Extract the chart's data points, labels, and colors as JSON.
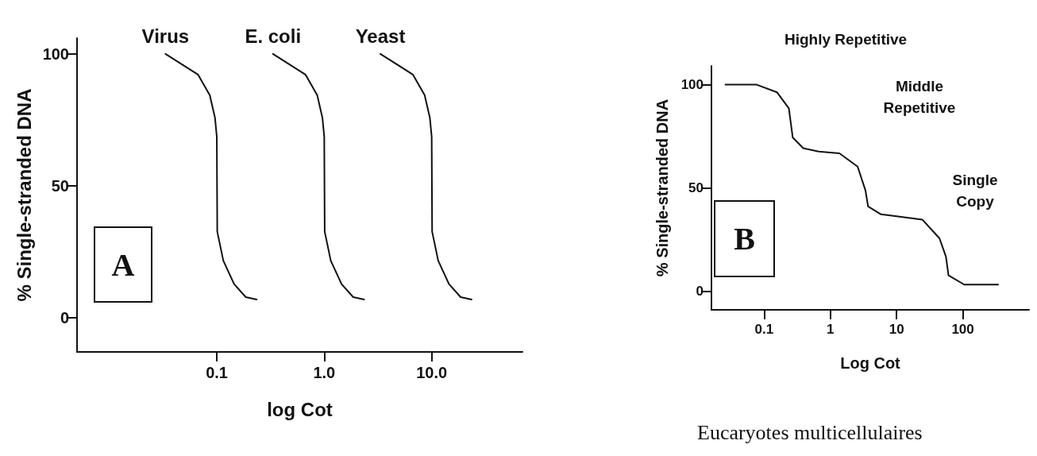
{
  "chart_data": [
    {
      "type": "line",
      "ylabel": "% Single-stranded DNA",
      "xlabel": "log Cot",
      "log": "x",
      "xlim": [
        0.005,
        70
      ],
      "xticks": [
        {
          "value": 0.1,
          "label": "0.1"
        },
        {
          "value": 1,
          "label": "1.0"
        },
        {
          "value": 10,
          "label": "10.0"
        }
      ],
      "ylim": [
        -13,
        106
      ],
      "yticks": [
        0,
        50,
        100
      ],
      "grid": false,
      "legend": false,
      "marker": "none",
      "line_style": "solid",
      "annotations": [
        "A"
      ],
      "series": [
        {
          "name": "Virus",
          "color": "#111111",
          "x": [
            0.0333,
            0.0668,
            0.086,
            0.0962,
            0.1,
            0.101,
            0.115,
            0.145,
            0.186,
            0.235
          ],
          "values": [
            100,
            92.2,
            84.4,
            75.8,
            68.6,
            32.6,
            21.6,
            12.7,
            7.8,
            6.9
          ]
        },
        {
          "name": "E. coli",
          "color": "#111111",
          "x": [
            0.333,
            0.668,
            0.86,
            0.962,
            1,
            1.01,
            1.15,
            1.45,
            1.86,
            2.35
          ],
          "values": [
            100,
            92.2,
            84.4,
            75.8,
            68.6,
            32.6,
            21.6,
            12.7,
            7.8,
            6.9
          ]
        },
        {
          "name": "Yeast",
          "color": "#111111",
          "x": [
            3.33,
            6.68,
            8.6,
            9.62,
            10,
            10.1,
            11.5,
            14.5,
            18.6,
            23.5
          ],
          "values": [
            100,
            92.2,
            84.4,
            75.8,
            68.6,
            32.6,
            21.6,
            12.7,
            7.8,
            6.9
          ]
        }
      ]
    },
    {
      "type": "line",
      "ylabel": "% Single-stranded DNA",
      "xlabel": "Log Cot",
      "log": "x",
      "xlim": [
        0.016,
        1000
      ],
      "xticks": [
        0.1,
        1,
        10,
        100
      ],
      "ylim": [
        -9,
        109
      ],
      "yticks": [
        0,
        50,
        100
      ],
      "grid": false,
      "legend": false,
      "marker": "none",
      "line_style": "solid",
      "annotations": [
        "Highly Repetitive",
        "Middle\nRepetitive",
        "Single\nCopy",
        "B",
        "Eucaryotes multicellulaires"
      ],
      "series": [
        {
          "color": "#111111",
          "x": [
            0.026,
            0.076,
            0.157,
            0.236,
            0.27,
            0.389,
            0.667,
            1.37,
            2.58,
            3.39,
            3.71,
            5.82,
            10,
            24.6,
            44.4,
            55.6,
            60.8,
            105,
            341
          ],
          "values": [
            100,
            100,
            96.2,
            88.5,
            74.4,
            69.2,
            67.6,
            66.7,
            60.3,
            48.7,
            41,
            37.2,
            36.3,
            34.6,
            25.6,
            16.7,
            7.7,
            3.2,
            3.2
          ]
        }
      ]
    }
  ]
}
